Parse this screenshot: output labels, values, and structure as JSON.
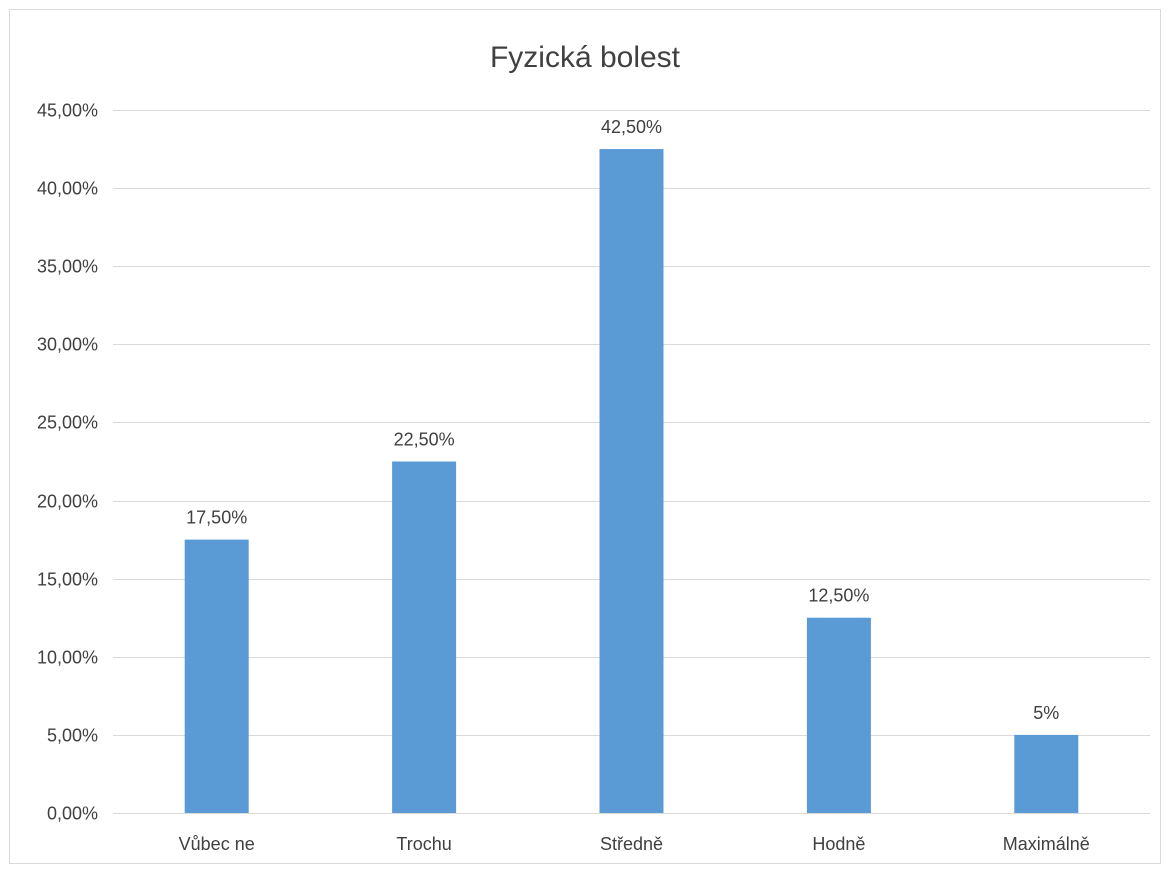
{
  "chart_data": {
    "type": "bar",
    "title": "Fyzická bolest",
    "categories": [
      "Vůbec ne",
      "Trochu",
      "Středně",
      "Hodně",
      "Maximálně"
    ],
    "values": [
      17.5,
      22.5,
      42.5,
      12.5,
      5
    ],
    "data_labels": [
      "17,50%",
      "22,50%",
      "42,50%",
      "12,50%",
      "5%"
    ],
    "y_tick_values": [
      0,
      5,
      10,
      15,
      20,
      25,
      30,
      35,
      40,
      45
    ],
    "y_tick_labels": [
      "0,00%",
      "5,00%",
      "10,00%",
      "15,00%",
      "20,00%",
      "25,00%",
      "30,00%",
      "35,00%",
      "40,00%",
      "45,00%"
    ],
    "ylim": [
      0,
      45
    ],
    "xlabel": "",
    "ylabel": "",
    "grid": true,
    "legend": false,
    "bar_color": "#5b9bd5",
    "grid_color": "#d9d9d9",
    "text_color": "#404040"
  }
}
